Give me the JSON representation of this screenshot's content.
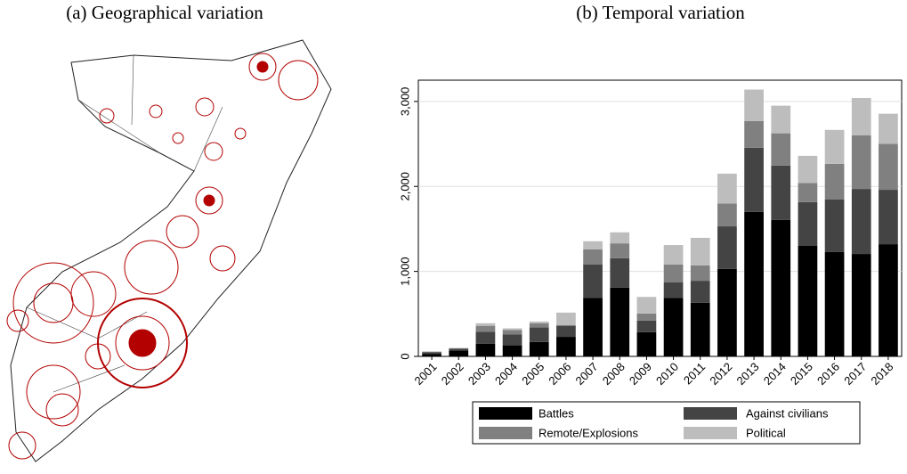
{
  "chart_data": [
    {
      "type": "map",
      "title": "(a) Geographical variation"
    },
    {
      "type": "stacked_bar",
      "title": "(b) Temporal variation",
      "categories": [
        "2001",
        "2002",
        "2003",
        "2004",
        "2005",
        "2006",
        "2007",
        "2008",
        "2009",
        "2010",
        "2011",
        "2012",
        "2013",
        "2014",
        "2015",
        "2016",
        "2017",
        "2018"
      ],
      "series": [
        {
          "name": "Battles",
          "color": "#000000",
          "values": [
            30,
            70,
            150,
            130,
            170,
            230,
            690,
            810,
            285,
            690,
            630,
            1030,
            1700,
            1605,
            1300,
            1230,
            1205,
            1320
          ]
        },
        {
          "name": "Against civilians",
          "color": "#444444",
          "values": [
            20,
            20,
            140,
            130,
            170,
            130,
            390,
            345,
            135,
            180,
            260,
            500,
            755,
            640,
            515,
            615,
            765,
            640
          ]
        },
        {
          "name": "Remote/Explosions",
          "color": "#808080",
          "values": [
            5,
            5,
            70,
            50,
            50,
            10,
            180,
            175,
            85,
            210,
            180,
            270,
            315,
            380,
            225,
            420,
            630,
            540
          ]
        },
        {
          "name": "Political",
          "color": "#bdbdbd",
          "values": [
            5,
            5,
            30,
            20,
            20,
            145,
            95,
            130,
            195,
            230,
            325,
            350,
            370,
            325,
            320,
            400,
            440,
            355
          ]
        }
      ],
      "ylim": [
        0,
        3250
      ],
      "yticks": [
        0,
        {
          "value": 1000,
          "label": "1,000"
        },
        {
          "value": 2000,
          "label": "2,000"
        },
        {
          "value": 3000,
          "label": "3,000"
        }
      ],
      "grid": true,
      "legend": "bottom"
    }
  ]
}
